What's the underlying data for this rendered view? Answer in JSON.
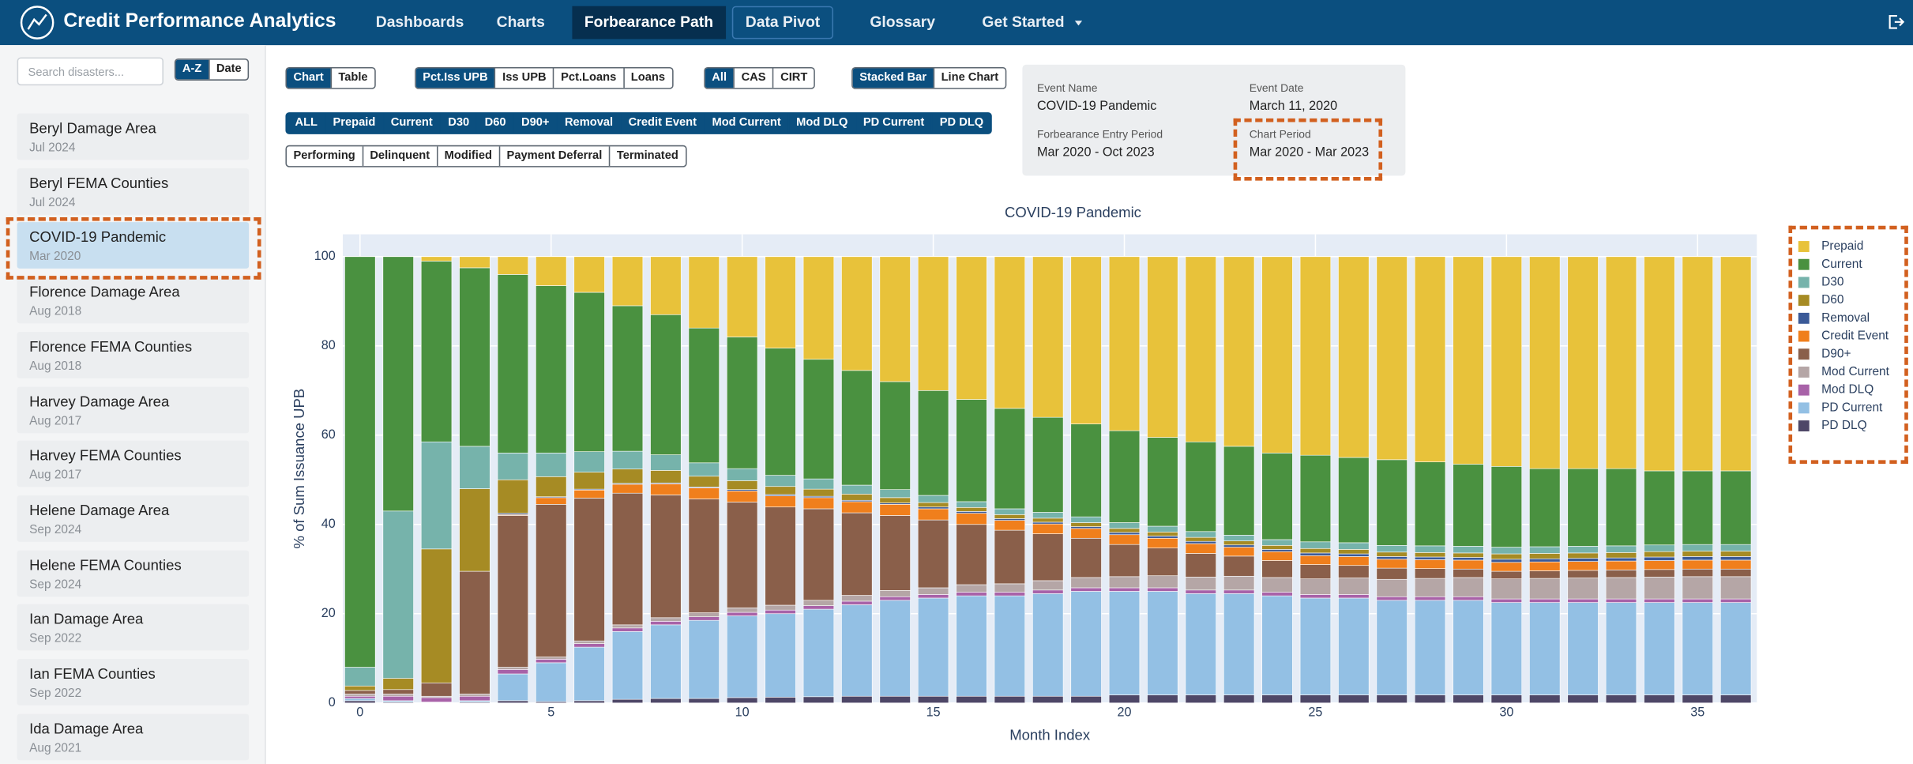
{
  "nav": {
    "title": "Credit Performance Analytics",
    "items": [
      "Dashboards",
      "Charts",
      "Forbearance Path",
      "Data Pivot",
      "Glossary",
      "Get Started"
    ],
    "active": 2
  },
  "sidebar": {
    "search_placeholder": "Search disasters...",
    "sort": {
      "options": [
        "A-Z",
        "Date"
      ],
      "active": 0
    },
    "selected": 2,
    "events": [
      {
        "name": "Beryl Damage Area",
        "date": "Jul 2024"
      },
      {
        "name": "Beryl FEMA Counties",
        "date": "Jul 2024"
      },
      {
        "name": "COVID-19 Pandemic",
        "date": "Mar 2020"
      },
      {
        "name": "Florence Damage Area",
        "date": "Aug 2018"
      },
      {
        "name": "Florence FEMA Counties",
        "date": "Aug 2018"
      },
      {
        "name": "Harvey Damage Area",
        "date": "Aug 2017"
      },
      {
        "name": "Harvey FEMA Counties",
        "date": "Aug 2017"
      },
      {
        "name": "Helene Damage Area",
        "date": "Sep 2024"
      },
      {
        "name": "Helene FEMA Counties",
        "date": "Sep 2024"
      },
      {
        "name": "Ian Damage Area",
        "date": "Sep 2022"
      },
      {
        "name": "Ian FEMA Counties",
        "date": "Sep 2022"
      },
      {
        "name": "Ida Damage Area",
        "date": "Aug 2021"
      }
    ]
  },
  "controls": {
    "view": {
      "options": [
        "Chart",
        "Table"
      ],
      "active": 0
    },
    "metric": {
      "options": [
        "Pct.Iss UPB",
        "Iss UPB",
        "Pct.Loans",
        "Loans"
      ],
      "active": 0
    },
    "program": {
      "options": [
        "All",
        "CAS",
        "CIRT"
      ],
      "active": 0
    },
    "chart_style": {
      "options": [
        "Stacked Bar",
        "Line Chart"
      ],
      "active": 0
    },
    "series_filters": [
      "ALL",
      "Prepaid",
      "Current",
      "D30",
      "D60",
      "D90+",
      "Removal",
      "Credit Event",
      "Mod Current",
      "Mod DLQ",
      "PD Current",
      "PD DLQ"
    ],
    "status_filters": [
      "Performing",
      "Delinquent",
      "Modified",
      "Payment Deferral",
      "Terminated"
    ]
  },
  "info": {
    "fields": [
      {
        "label": "Event Name",
        "value": "COVID-19 Pandemic"
      },
      {
        "label": "Event Date",
        "value": "March 11, 2020"
      },
      {
        "label": "Forbearance Entry Period",
        "value": "Mar 2020 - Oct 2023"
      },
      {
        "label": "Chart Period",
        "value": "Mar 2020 - Mar 2023"
      }
    ]
  },
  "chart_data": {
    "type": "bar",
    "stacked": true,
    "title": "COVID-19 Pandemic",
    "x_label": "Month Index",
    "y_label": "% of Sum Issuance UPB",
    "x": [
      0,
      1,
      2,
      3,
      4,
      5,
      6,
      7,
      8,
      9,
      10,
      11,
      12,
      13,
      14,
      15,
      16,
      17,
      18,
      19,
      20,
      21,
      22,
      23,
      24,
      25,
      26,
      27,
      28,
      29,
      30,
      31,
      32,
      33,
      34,
      35,
      36
    ],
    "xlim": [
      -0.45,
      36.55
    ],
    "xticks": [
      0,
      5,
      10,
      15,
      20,
      25,
      30,
      35
    ],
    "ylim": [
      0,
      105
    ],
    "yticks": [
      0,
      20,
      40,
      60,
      80,
      100
    ],
    "grid": true,
    "legend": "right",
    "series": [
      {
        "name": "Prepaid",
        "color": "#e8c23a",
        "values": [
          0,
          0,
          1,
          2.5,
          4,
          6.5,
          8,
          11,
          13,
          16,
          18,
          20.5,
          23,
          25.5,
          28,
          30,
          32,
          34,
          36,
          37.5,
          39,
          40.5,
          41.5,
          42.5,
          44,
          44.5,
          45,
          45.5,
          46,
          46.5,
          47,
          47.5,
          47.5,
          47.5,
          48,
          48,
          48
        ]
      },
      {
        "name": "Current",
        "color": "#4a9140",
        "values": [
          92,
          57,
          40.5,
          40,
          40,
          37.5,
          35.7,
          32.6,
          31.4,
          30.2,
          29.5,
          28.5,
          26.8,
          25.7,
          24.2,
          23.5,
          22.9,
          22.5,
          21.3,
          20.8,
          20.6,
          19.9,
          20.1,
          19.9,
          19.4,
          19.4,
          19.1,
          19.2,
          18.8,
          18.4,
          18.1,
          17.5,
          17.4,
          17.3,
          16.6,
          16.5,
          16.5
        ]
      },
      {
        "name": "D30",
        "color": "#76b3ab",
        "values": [
          4.2,
          37.5,
          24,
          9.5,
          6,
          5.3,
          4.6,
          4,
          3.5,
          3,
          2.7,
          2.5,
          2.3,
          2,
          1.8,
          1.6,
          1.3,
          1.3,
          1.3,
          1.3,
          1.3,
          1.3,
          1.3,
          1.3,
          1.3,
          1.5,
          1.5,
          1.5,
          1.5,
          1.5,
          1.5,
          1.5,
          1.5,
          1.5,
          1.5,
          1.5,
          1.5
        ]
      },
      {
        "name": "D60",
        "color": "#a68b24",
        "values": [
          1,
          2.5,
          30,
          18.5,
          7.5,
          4.5,
          3.8,
          3.2,
          2.8,
          2.4,
          2,
          1.8,
          1.6,
          1.4,
          1.2,
          1,
          0.9,
          0.9,
          0.9,
          0.9,
          0.9,
          0.9,
          0.9,
          0.9,
          0.9,
          1,
          1,
          1,
          1,
          1,
          1.2,
          1.2,
          1.2,
          1.2,
          1.2,
          1.2,
          1.2
        ]
      },
      {
        "name": "Removal",
        "color": "#3b5a98",
        "values": [
          0,
          0,
          0,
          0,
          0.3,
          0.2,
          0.2,
          0.2,
          0.2,
          0.2,
          0.3,
          0.3,
          0.3,
          0.3,
          0.3,
          0.4,
          0.4,
          0.4,
          0.4,
          0.4,
          0.5,
          0.5,
          0.5,
          0.5,
          0.5,
          0.6,
          0.6,
          0.6,
          0.6,
          0.6,
          0.7,
          0.7,
          0.7,
          0.7,
          0.8,
          0.8,
          0.8
        ]
      },
      {
        "name": "Credit Event",
        "color": "#f07f1c",
        "values": [
          0,
          0,
          0,
          0,
          0.2,
          1.5,
          1.8,
          2,
          2.5,
          2.5,
          2.5,
          2.5,
          2.5,
          2.5,
          2.5,
          2.5,
          2.5,
          2.2,
          2.2,
          2.2,
          2.2,
          2.2,
          2.2,
          2,
          2,
          2,
          2,
          2,
          2,
          2,
          2,
          2,
          2,
          2,
          2,
          2,
          2
        ]
      },
      {
        "name": "D90+",
        "color": "#8a5f4a",
        "values": [
          0.8,
          1,
          3,
          27.5,
          34,
          34.2,
          32,
          29.5,
          27.5,
          25.5,
          23.7,
          22,
          20.5,
          18.5,
          16.8,
          15.2,
          13.5,
          12,
          10.5,
          8.8,
          7.2,
          6.2,
          5.3,
          4.5,
          3.8,
          3.2,
          2.8,
          2.5,
          2.2,
          1.9,
          1.7,
          1.7,
          1.7,
          1.7,
          1.7,
          1.7,
          1.7
        ]
      },
      {
        "name": "Mod Current",
        "color": "#b5a6a6",
        "values": [
          0.5,
          0.5,
          0.3,
          0.5,
          0.5,
          0.5,
          0.6,
          0.7,
          0.8,
          0.9,
          1,
          1.1,
          1.2,
          1.3,
          1.4,
          1.5,
          1.7,
          1.9,
          2.1,
          2.3,
          2.5,
          2.7,
          2.9,
          3.1,
          3.3,
          3.5,
          3.7,
          3.9,
          4.1,
          4.3,
          4.5,
          4.6,
          4.7,
          4.8,
          4.9,
          5,
          5
        ]
      },
      {
        "name": "Mod DLQ",
        "color": "#a862a8",
        "values": [
          0.5,
          1,
          1,
          1,
          1,
          0.8,
          0.8,
          0.8,
          0.8,
          0.8,
          0.8,
          0.8,
          0.8,
          0.8,
          0.8,
          0.8,
          0.8,
          0.8,
          0.8,
          0.8,
          0.8,
          0.8,
          0.8,
          0.8,
          0.8,
          0.8,
          0.8,
          0.8,
          0.8,
          0.8,
          0.8,
          0.8,
          0.8,
          0.8,
          0.8,
          0.8,
          0.8
        ]
      },
      {
        "name": "PD Current",
        "color": "#93c0e4",
        "values": [
          0.5,
          0.3,
          0.1,
          0.3,
          6,
          8.7,
          12,
          15.2,
          16.5,
          17.5,
          18.3,
          18.7,
          19.6,
          20.5,
          21.5,
          22,
          22.5,
          22.5,
          23,
          23.5,
          23.2,
          23.2,
          22.7,
          22.7,
          22.2,
          21.7,
          21.7,
          21.2,
          21.2,
          21.2,
          20.7,
          20.7,
          20.7,
          20.7,
          20.7,
          20.7,
          20.7
        ]
      },
      {
        "name": "PD DLQ",
        "color": "#4e4767",
        "values": [
          0.5,
          0.2,
          0.1,
          0.2,
          0.5,
          0.3,
          0.5,
          0.8,
          1,
          1,
          1.2,
          1.3,
          1.4,
          1.5,
          1.5,
          1.5,
          1.5,
          1.5,
          1.5,
          1.5,
          1.8,
          1.8,
          1.8,
          1.8,
          1.8,
          1.8,
          1.8,
          1.8,
          1.8,
          1.8,
          1.8,
          1.8,
          1.8,
          1.8,
          1.8,
          1.8,
          1.8
        ]
      }
    ]
  }
}
